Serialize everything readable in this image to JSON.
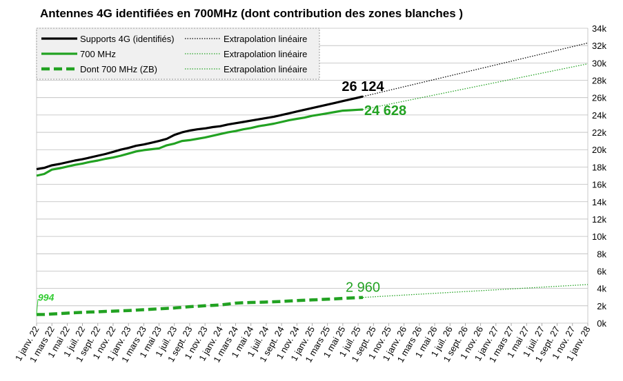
{
  "chart_data": {
    "type": "line",
    "title": "Antennes 4G identifiées en 700MHz (dont contribution des zones blanches )",
    "xlabel": "",
    "ylabel": "",
    "ylim": [
      0,
      34000
    ],
    "grid": "horizontal",
    "legend_position": "top-left",
    "y_ticks": [
      "0k",
      "2k",
      "4k",
      "6k",
      "8k",
      "10k",
      "12k",
      "14k",
      "16k",
      "18k",
      "20k",
      "22k",
      "24k",
      "26k",
      "28k",
      "30k",
      "32k",
      "34k"
    ],
    "x_ticks": [
      "1 janv. 22",
      "1 mars 22",
      "1 mai 22",
      "1 juil. 22",
      "1 sept. 22",
      "1 nov. 22",
      "1 janv. 23",
      "1 mars 23",
      "1 mai 23",
      "1 juil. 23",
      "1 sept. 23",
      "1 nov. 23",
      "1 janv. 24",
      "1 mars 24",
      "1 mai 24",
      "1 juil. 24",
      "1 sept. 24",
      "1 nov. 24",
      "1 janv. 25",
      "1 mars 25",
      "1 mai 25",
      "1 juil. 25",
      "1 sept. 25",
      "1 nov. 25",
      "1 janv. 26",
      "1 mars 26",
      "1 mai 26",
      "1 juil. 26",
      "1 sept. 26",
      "1 nov. 26",
      "1 janv. 27",
      "1 mars 27",
      "1 mai 27",
      "1 juil. 27",
      "1 sept. 27",
      "1 nov. 27",
      "1 janv. 28"
    ],
    "x_range": [
      "2022-01-01",
      "2028-01-01"
    ],
    "series": [
      {
        "name": "Supports 4G (identifiés)",
        "color": "#000000",
        "style": "solid",
        "x": [
          "2022-01-01",
          "2022-02-01",
          "2022-03-01",
          "2022-04-01",
          "2022-05-01",
          "2022-06-01",
          "2022-07-01",
          "2022-08-01",
          "2022-09-01",
          "2022-10-01",
          "2022-11-01",
          "2022-12-01",
          "2023-01-01",
          "2023-02-01",
          "2023-03-01",
          "2023-04-01",
          "2023-05-01",
          "2023-06-01",
          "2023-07-01",
          "2023-08-01",
          "2023-09-01",
          "2023-10-01",
          "2023-11-01",
          "2023-12-01",
          "2024-01-01",
          "2024-02-01",
          "2024-03-01",
          "2024-04-01",
          "2024-05-01",
          "2024-06-01",
          "2024-07-01",
          "2024-08-01",
          "2024-09-01",
          "2024-10-01",
          "2024-11-01",
          "2024-12-01",
          "2025-01-01",
          "2025-02-01",
          "2025-03-01",
          "2025-04-01",
          "2025-05-01",
          "2025-06-01",
          "2025-07-01",
          "2025-07-20"
        ],
        "values": [
          17750,
          17900,
          18200,
          18350,
          18550,
          18750,
          18900,
          19100,
          19300,
          19500,
          19750,
          20000,
          20200,
          20450,
          20600,
          20800,
          21000,
          21250,
          21700,
          22000,
          22200,
          22350,
          22450,
          22600,
          22700,
          22900,
          23050,
          23200,
          23350,
          23500,
          23650,
          23800,
          24000,
          24200,
          24400,
          24600,
          24800,
          25000,
          25200,
          25400,
          25600,
          25800,
          26000,
          26124
        ]
      },
      {
        "name": "700 MHz",
        "color": "#22a222",
        "style": "solid",
        "x": [
          "2022-01-01",
          "2022-02-01",
          "2022-03-01",
          "2022-04-01",
          "2022-05-01",
          "2022-06-01",
          "2022-07-01",
          "2022-08-01",
          "2022-09-01",
          "2022-10-01",
          "2022-11-01",
          "2022-12-01",
          "2023-01-01",
          "2023-02-01",
          "2023-03-01",
          "2023-04-01",
          "2023-05-01",
          "2023-06-01",
          "2023-07-01",
          "2023-08-01",
          "2023-09-01",
          "2023-10-01",
          "2023-11-01",
          "2023-12-01",
          "2024-01-01",
          "2024-02-01",
          "2024-03-01",
          "2024-04-01",
          "2024-05-01",
          "2024-06-01",
          "2024-07-01",
          "2024-08-01",
          "2024-09-01",
          "2024-10-01",
          "2024-11-01",
          "2024-12-01",
          "2025-01-01",
          "2025-02-01",
          "2025-03-01",
          "2025-04-01",
          "2025-05-01",
          "2025-06-01",
          "2025-07-01",
          "2025-07-20"
        ],
        "values": [
          17000,
          17200,
          17700,
          17850,
          18050,
          18250,
          18400,
          18600,
          18750,
          18950,
          19100,
          19300,
          19550,
          19800,
          19950,
          20050,
          20150,
          20500,
          20700,
          21000,
          21100,
          21250,
          21400,
          21600,
          21800,
          22000,
          22150,
          22350,
          22500,
          22700,
          22850,
          23000,
          23200,
          23400,
          23550,
          23700,
          23900,
          24050,
          24200,
          24350,
          24500,
          24550,
          24600,
          24628
        ]
      },
      {
        "name": "Dont 700 MHz (ZB)",
        "color": "#22a222",
        "style": "dashed",
        "x": [
          "2022-01-01",
          "2022-02-01",
          "2022-03-01",
          "2022-04-01",
          "2022-05-01",
          "2022-06-01",
          "2022-07-01",
          "2022-08-01",
          "2022-09-01",
          "2022-10-01",
          "2022-11-01",
          "2022-12-01",
          "2023-01-01",
          "2023-02-01",
          "2023-03-01",
          "2023-04-01",
          "2023-05-01",
          "2023-06-01",
          "2023-07-01",
          "2023-08-01",
          "2023-09-01",
          "2023-10-01",
          "2023-11-01",
          "2023-12-01",
          "2024-01-01",
          "2024-02-01",
          "2024-03-01",
          "2024-04-01",
          "2024-05-01",
          "2024-06-01",
          "2024-07-01",
          "2024-08-01",
          "2024-09-01",
          "2024-10-01",
          "2024-11-01",
          "2024-12-01",
          "2025-01-01",
          "2025-02-01",
          "2025-03-01",
          "2025-04-01",
          "2025-05-01",
          "2025-06-01",
          "2025-07-01",
          "2025-07-20"
        ],
        "values": [
          994,
          1000,
          1050,
          1100,
          1150,
          1200,
          1250,
          1280,
          1300,
          1350,
          1380,
          1420,
          1450,
          1500,
          1550,
          1600,
          1650,
          1700,
          1750,
          1820,
          1900,
          1950,
          2000,
          2050,
          2100,
          2200,
          2300,
          2350,
          2380,
          2400,
          2430,
          2460,
          2500,
          2550,
          2600,
          2640,
          2680,
          2720,
          2760,
          2800,
          2850,
          2900,
          2940,
          2960
        ]
      },
      {
        "name": "Extrapolation linéaire",
        "color": "#000000",
        "style": "dotted",
        "x": [
          "2025-07-20",
          "2028-01-01"
        ],
        "values": [
          26124,
          32300
        ]
      },
      {
        "name": "Extrapolation linéaire",
        "color": "#22a222",
        "style": "dotted",
        "x": [
          "2025-07-20",
          "2028-01-01"
        ],
        "values": [
          24628,
          29900
        ]
      },
      {
        "name": "Extrapolation linéaire",
        "color": "#22a222",
        "style": "dotted",
        "x": [
          "2025-07-20",
          "2028-01-01"
        ],
        "values": [
          2960,
          4450
        ]
      }
    ],
    "legend": [
      {
        "label": "Supports 4G (identifiés)",
        "color": "#000000",
        "style": "solid"
      },
      {
        "label": "Extrapolation linéaire",
        "color": "#000000",
        "style": "dotted"
      },
      {
        "label": "700 MHz",
        "color": "#22a222",
        "style": "solid"
      },
      {
        "label": "Extrapolation linéaire",
        "color": "#22a222",
        "style": "dotted"
      },
      {
        "label": "Dont 700 MHz (ZB)",
        "color": "#22a222",
        "style": "dashed"
      },
      {
        "label": "Extrapolation linéaire",
        "color": "#22a222",
        "style": "dotted"
      }
    ],
    "annotations": [
      {
        "text": "26 124",
        "x": "2025-07-20",
        "y": 26124,
        "color": "#000000",
        "size": "large",
        "bold": true,
        "anchor": "above"
      },
      {
        "text": "24 628",
        "x": "2025-07-20",
        "y": 24628,
        "color": "#22a222",
        "size": "large",
        "bold": true,
        "anchor": "right"
      },
      {
        "text": "2 960",
        "x": "2025-07-20",
        "y": 2960,
        "color": "#22a222",
        "size": "large",
        "bold": false,
        "anchor": "above"
      },
      {
        "text": "994",
        "x": "2022-01-01",
        "y": 994,
        "color": "#33cc33",
        "size": "small",
        "bold": true,
        "italic": true,
        "anchor": "above-right"
      }
    ]
  }
}
